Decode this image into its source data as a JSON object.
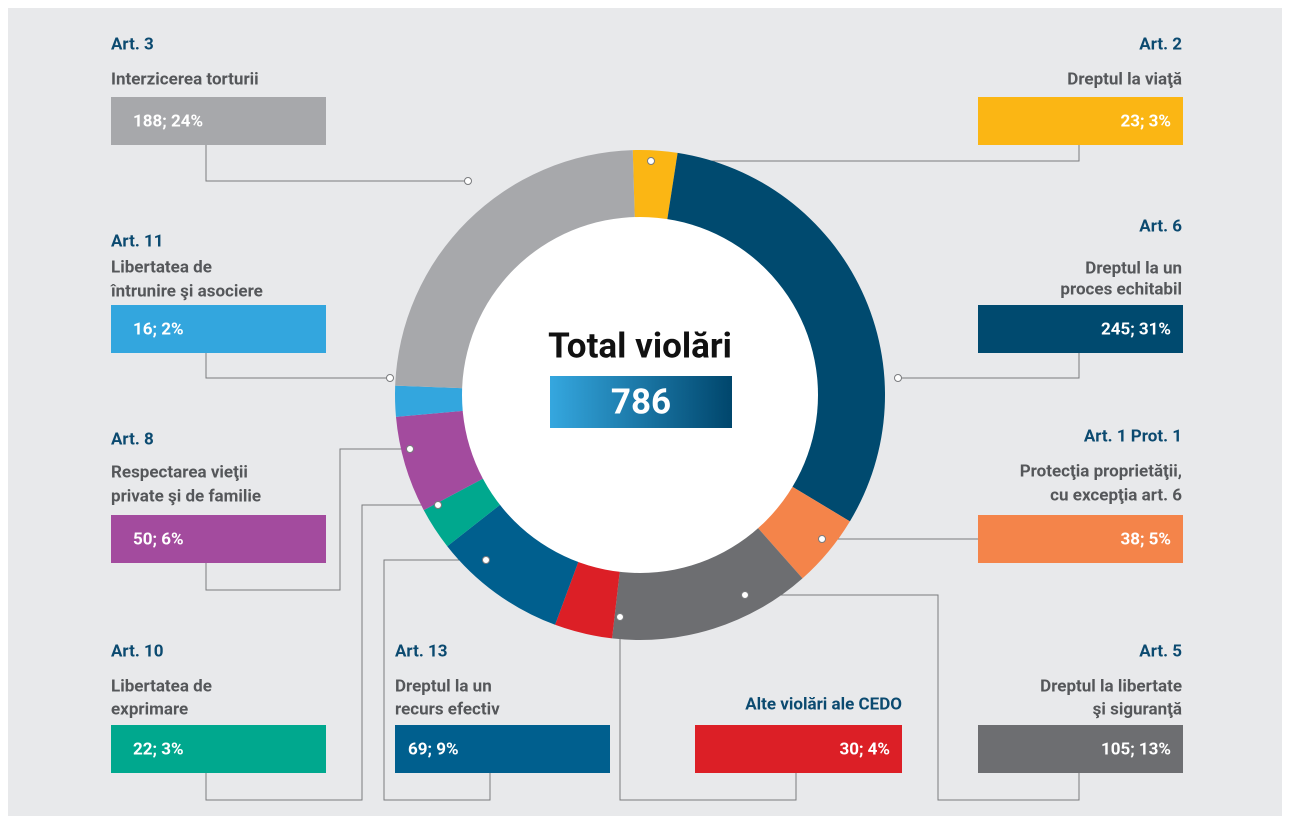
{
  "chart_data": {
    "type": "donut",
    "center_label": "Total violări",
    "total": 786,
    "categories": [
      "Art. 2",
      "Art. 6",
      "Art. 1 Prot. 1",
      "Art. 5",
      "Alte violări ale CEDO",
      "Art. 13",
      "Art. 10",
      "Art. 8",
      "Art. 11",
      "Art. 3"
    ],
    "descriptions": [
      [
        "Dreptul la viaţă"
      ],
      [
        "Dreptul la un",
        "proces echitabil"
      ],
      [
        "Protecţia proprietăţii,",
        "cu excepţia art. 6"
      ],
      [
        "Dreptul la libertate",
        "şi siguranţă"
      ],
      [],
      [
        "Dreptul la un",
        "recurs efectiv"
      ],
      [
        "Libertatea de",
        "exprimare"
      ],
      [
        "Respectarea vieţii",
        "private şi de familie"
      ],
      [
        "Libertatea de",
        "întrunire şi asociere"
      ],
      [
        "Interzicerea torturii"
      ]
    ],
    "values": [
      23,
      245,
      38,
      105,
      30,
      69,
      22,
      50,
      16,
      188
    ],
    "value_labels": [
      "23; 3%",
      "245; 31%",
      "38; 5%",
      "105; 13%",
      "30; 4%",
      "69; 9%",
      "22; 3%",
      "50; 6%",
      "16; 2%",
      "188; 24%"
    ],
    "colors": [
      "#fbb614",
      "#004a6f",
      "#f4844a",
      "#6d6e71",
      "#dc1f26",
      "#005f8e",
      "#00a88e",
      "#a34b9e",
      "#33a6de",
      "#a7a8ab"
    ]
  }
}
